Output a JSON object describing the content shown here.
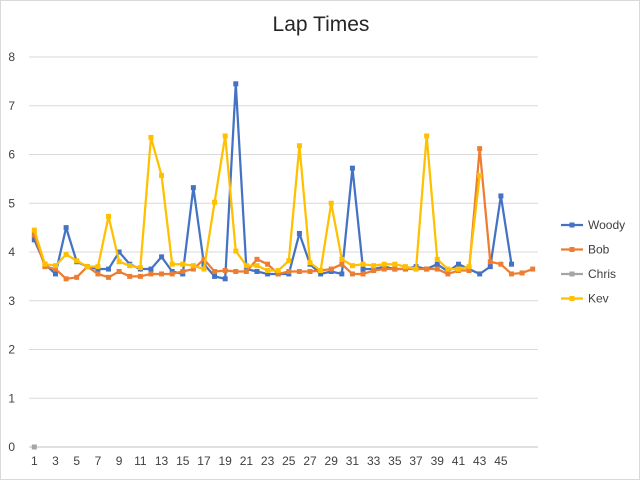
{
  "chart_data": {
    "type": "line",
    "title": "Lap Times",
    "xlabel": "",
    "ylabel": "",
    "ylim": [
      0,
      8
    ],
    "yticks": [
      0,
      1,
      2,
      3,
      4,
      5,
      6,
      7,
      8
    ],
    "x": [
      1,
      2,
      3,
      4,
      5,
      6,
      7,
      8,
      9,
      10,
      11,
      12,
      13,
      14,
      15,
      16,
      17,
      18,
      19,
      20,
      21,
      22,
      23,
      24,
      25,
      26,
      27,
      28,
      29,
      30,
      31,
      32,
      33,
      34,
      35,
      36,
      37,
      38,
      39,
      40,
      41,
      42,
      43,
      44,
      45,
      46,
      47,
      48
    ],
    "xtick_labels": [
      "1",
      "3",
      "5",
      "7",
      "9",
      "11",
      "13",
      "15",
      "17",
      "19",
      "21",
      "23",
      "25",
      "27",
      "29",
      "31",
      "33",
      "35",
      "37",
      "39",
      "41",
      "43",
      "45"
    ],
    "grid": true,
    "legend_position": "right",
    "series": [
      {
        "name": "Woody",
        "color": "#4472c4",
        "marker": "square",
        "values": [
          4.25,
          3.75,
          3.55,
          4.5,
          3.8,
          3.7,
          3.65,
          3.65,
          4.0,
          3.75,
          3.65,
          3.65,
          3.9,
          3.6,
          3.55,
          5.32,
          3.75,
          3.5,
          3.45,
          7.45,
          3.65,
          3.6,
          3.55,
          3.55,
          3.55,
          4.38,
          3.75,
          3.55,
          3.6,
          3.55,
          5.72,
          3.65,
          3.65,
          3.7,
          3.65,
          3.65,
          3.7,
          3.65,
          3.75,
          3.6,
          3.75,
          3.65,
          3.55,
          3.7,
          5.15,
          3.75,
          null,
          null
        ]
      },
      {
        "name": "Bob",
        "color": "#ed7d31",
        "marker": "square",
        "values": [
          4.35,
          3.7,
          3.65,
          3.45,
          3.48,
          3.7,
          3.55,
          3.48,
          3.6,
          3.5,
          3.5,
          3.55,
          3.55,
          3.55,
          3.6,
          3.65,
          3.85,
          3.6,
          3.62,
          3.6,
          3.6,
          3.85,
          3.75,
          3.55,
          3.6,
          3.6,
          3.6,
          3.62,
          3.65,
          3.75,
          3.55,
          3.55,
          3.62,
          3.65,
          3.65,
          3.65,
          3.65,
          3.65,
          3.65,
          3.55,
          3.62,
          3.62,
          6.12,
          3.8,
          3.75,
          3.55,
          3.57,
          3.65
        ]
      },
      {
        "name": "Chris",
        "color": "#a5a5a5",
        "marker": "square",
        "values": [
          0,
          null,
          null,
          null,
          null,
          null,
          null,
          null,
          null,
          null,
          null,
          null,
          null,
          null,
          null,
          null,
          null,
          null,
          null,
          null,
          null,
          null,
          null,
          null,
          null,
          null,
          null,
          null,
          null,
          null,
          null,
          null,
          null,
          null,
          null,
          null,
          null,
          null,
          null,
          null,
          null,
          null,
          null,
          null,
          null,
          null,
          null,
          null
        ]
      },
      {
        "name": "Kev",
        "color": "#ffc000",
        "marker": "square",
        "values": [
          4.45,
          3.75,
          3.72,
          3.95,
          3.82,
          3.7,
          3.7,
          4.73,
          3.8,
          3.72,
          3.68,
          6.35,
          5.57,
          3.75,
          3.75,
          3.72,
          3.65,
          5.02,
          6.38,
          4.02,
          3.72,
          3.72,
          3.62,
          3.62,
          3.82,
          6.18,
          3.78,
          3.62,
          5.0,
          3.85,
          3.72,
          3.75,
          3.72,
          3.75,
          3.75,
          3.7,
          3.65,
          6.38,
          3.85,
          3.65,
          3.65,
          3.7,
          5.57,
          null,
          null,
          null,
          null,
          null
        ]
      }
    ]
  }
}
